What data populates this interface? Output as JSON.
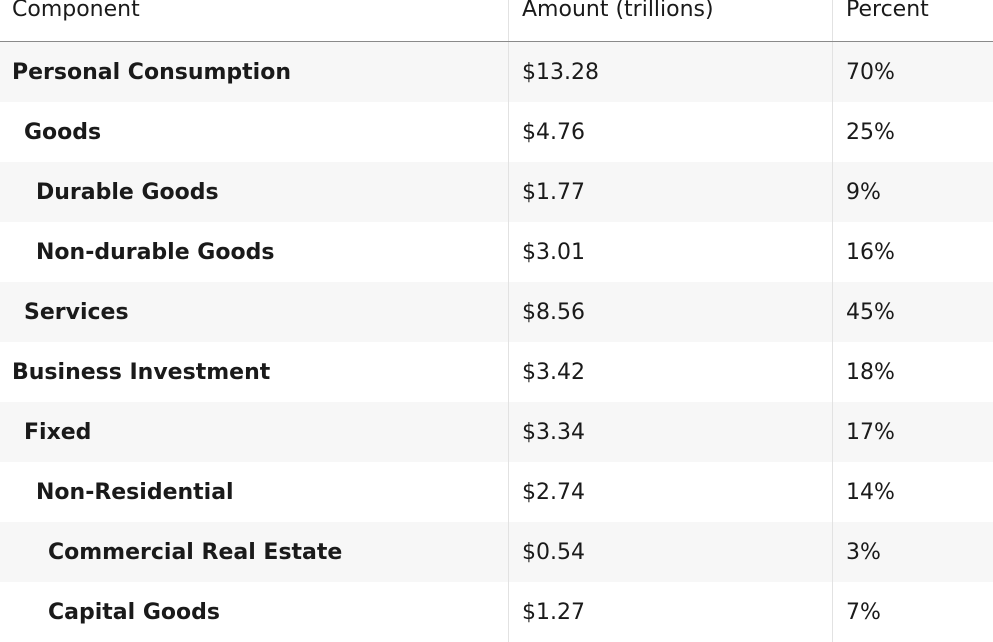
{
  "table": {
    "headers": [
      "Component",
      "Amount (trillions)",
      "Percent"
    ],
    "rows": [
      {
        "component": "Personal Consumption",
        "amount": "$13.28",
        "percent": "70%",
        "level": 0
      },
      {
        "component": "Goods",
        "amount": "$4.76",
        "percent": "25%",
        "level": 1
      },
      {
        "component": "Durable Goods",
        "amount": "$1.77",
        "percent": "9%",
        "level": 2
      },
      {
        "component": "Non-durable Goods",
        "amount": "$3.01",
        "percent": "16%",
        "level": 2
      },
      {
        "component": "Services",
        "amount": "$8.56",
        "percent": "45%",
        "level": 1
      },
      {
        "component": "Business Investment",
        "amount": "$3.42",
        "percent": "18%",
        "level": 0
      },
      {
        "component": "Fixed",
        "amount": "$3.34",
        "percent": "17%",
        "level": 1
      },
      {
        "component": "Non-Residential",
        "amount": "$2.74",
        "percent": "14%",
        "level": 2
      },
      {
        "component": "Commercial Real Estate",
        "amount": "$0.54",
        "percent": "3%",
        "level": 3
      },
      {
        "component": "Capital Goods",
        "amount": "$1.27",
        "percent": "7%",
        "level": 3
      }
    ]
  }
}
